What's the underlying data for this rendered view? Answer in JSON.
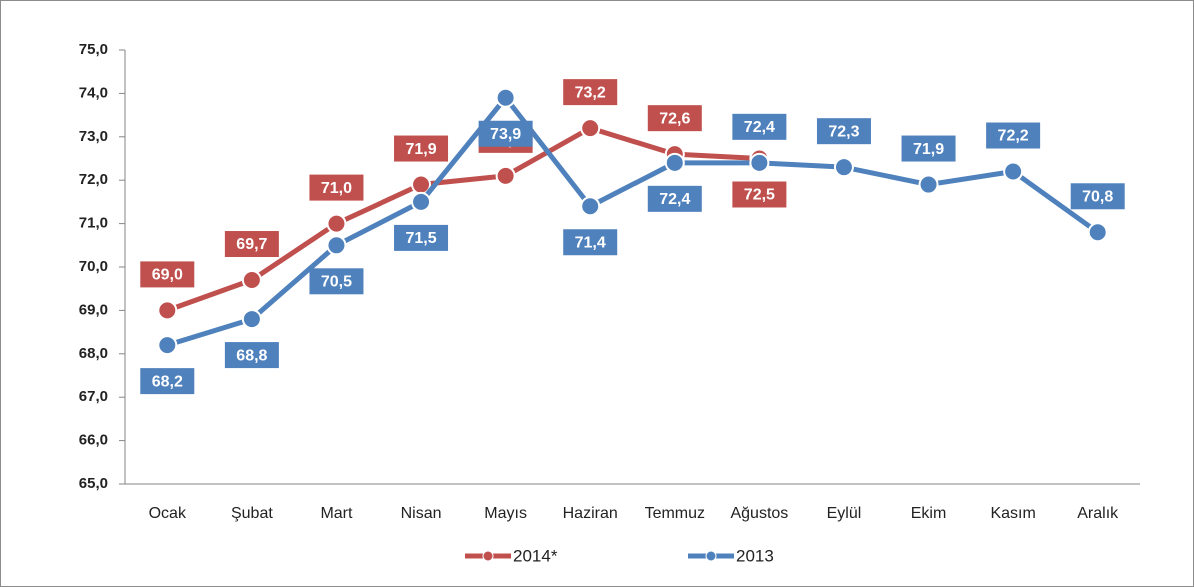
{
  "chart_data": {
    "type": "line",
    "categories": [
      "Ocak",
      "Şubat",
      "Mart",
      "Nisan",
      "Mayıs",
      "Haziran",
      "Temmuz",
      "Ağustos",
      "Eylül",
      "Ekim",
      "Kasım",
      "Aralık"
    ],
    "series": [
      {
        "name": "2014*",
        "color": "#c0504d",
        "values": [
          69.0,
          69.7,
          71.0,
          71.9,
          72.1,
          73.2,
          72.6,
          72.5,
          null,
          null,
          null,
          null
        ],
        "value_labels": [
          "69,0",
          "69,7",
          "71,0",
          "71,9",
          "72,1",
          "73,2",
          "72,6",
          "72,5",
          null,
          null,
          null,
          null
        ]
      },
      {
        "name": "2013",
        "color": "#4f81bd",
        "values": [
          68.2,
          68.8,
          70.5,
          71.5,
          73.9,
          71.4,
          72.4,
          72.4,
          72.3,
          71.9,
          72.2,
          70.8
        ],
        "value_labels": [
          "68,2",
          "68,8",
          "70,5",
          "71,5",
          "73,9",
          "71,4",
          "72,4",
          "72,4",
          "72,3",
          "71,9",
          "72,2",
          "70,8"
        ]
      }
    ],
    "ylim": [
      65,
      75
    ],
    "yticks": [
      {
        "value": 65,
        "label": "65,0"
      },
      {
        "value": 66,
        "label": "66,0"
      },
      {
        "value": 67,
        "label": "67,0"
      },
      {
        "value": 68,
        "label": "68,0"
      },
      {
        "value": 69,
        "label": "69,0"
      },
      {
        "value": 70,
        "label": "70,0"
      },
      {
        "value": 71,
        "label": "71,0"
      },
      {
        "value": 72,
        "label": "72,0"
      },
      {
        "value": 73,
        "label": "73,0"
      },
      {
        "value": 74,
        "label": "74,0"
      },
      {
        "value": 75,
        "label": "75,0"
      }
    ],
    "legend": "bottom"
  }
}
